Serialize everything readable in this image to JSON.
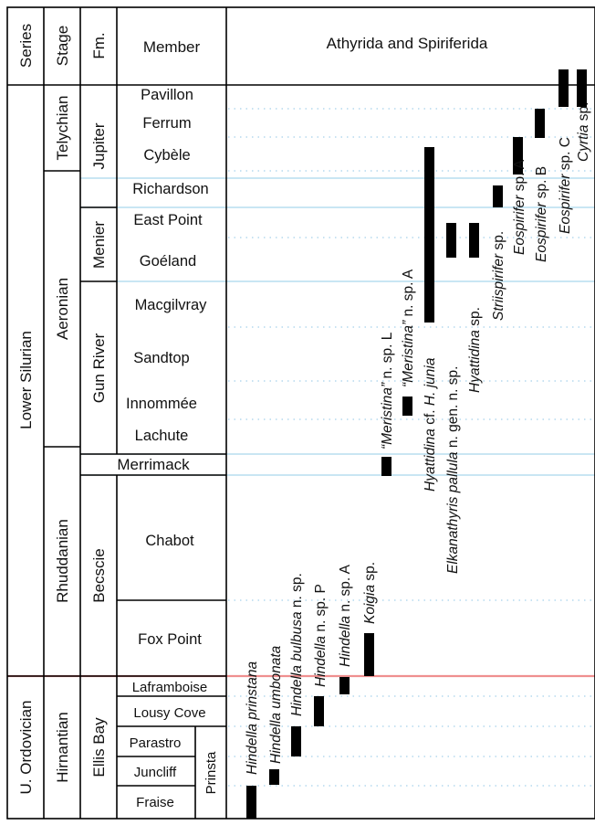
{
  "header": {
    "series": "Series",
    "stage": "Stage",
    "formation": "Fm.",
    "member": "Member",
    "group": "Athyrida and Spiriferida"
  },
  "series_units": [
    "Lower Silurian",
    "U. Ordovician"
  ],
  "stages": [
    "Telychian",
    "Aeronian",
    "Rhuddanian",
    "Hirnantian"
  ],
  "formations": [
    "Jupiter",
    "Menier",
    "Gun River",
    "Merrimack",
    "Becscie",
    "Ellis Bay"
  ],
  "members": [
    "Pavillon",
    "Ferrum",
    "Cybèle",
    "Richardson",
    "East Point",
    "Goéland",
    "Macgilvray",
    "Sandtop",
    "Innommée",
    "Lachute",
    "Chabot",
    "Fox Point",
    "Laframboise",
    "Lousy Cove",
    "Parastro",
    "Juncliff",
    "Fraise"
  ],
  "submember": "Prinsta",
  "colors": {
    "bar": "#000000",
    "member_boundary": "#a9d6ec",
    "system_boundary": "#ef8f8f",
    "dotted_level": "#8fc6e6",
    "frame": "#000000"
  },
  "chart_data": {
    "type": "range-chart",
    "title": "Athyrida and Spiriferida",
    "ordered_units_top_to_bottom": [
      "Pavillon",
      "Ferrum",
      "Cybèle",
      "Richardson",
      "East Point",
      "Goéland",
      "Macgilvray",
      "Sandtop",
      "Innommée",
      "Lachute",
      "Merrimack",
      "Chabot",
      "Fox Point",
      "Laframboise",
      "Lousy Cove",
      "Parastro",
      "Juncliff",
      "Fraise"
    ],
    "taxa": [
      {
        "parts": [
          {
            "t": "Hindella prinstana",
            "i": true
          }
        ],
        "range": [
          "Fraise",
          "Fraise"
        ]
      },
      {
        "parts": [
          {
            "t": "Hindella umbonata",
            "i": true
          }
        ],
        "range": [
          "Juncliff",
          "Juncliff"
        ]
      },
      {
        "parts": [
          {
            "t": "Hindella bulbusa",
            "i": true
          },
          {
            "t": " n. sp.",
            "i": false
          }
        ],
        "range": [
          "Parastro",
          "Parastro"
        ]
      },
      {
        "parts": [
          {
            "t": "Hindella",
            "i": true
          },
          {
            "t": " n. sp. P",
            "i": false
          }
        ],
        "range": [
          "Lousy Cove",
          "Lousy Cove"
        ]
      },
      {
        "parts": [
          {
            "t": "Hindella",
            "i": true
          },
          {
            "t": " n. sp. A",
            "i": false
          }
        ],
        "range": [
          "Laframboise",
          "Laframboise"
        ]
      },
      {
        "parts": [
          {
            "t": "Koigia",
            "i": true
          },
          {
            "t": " sp.",
            "i": false
          }
        ],
        "range": [
          "Fox Point",
          "Fox Point"
        ]
      },
      {
        "parts": [
          {
            "t": "“Meristina”",
            "i": true
          },
          {
            "t": " n. sp. L",
            "i": false
          }
        ],
        "range": [
          "Merrimack",
          "Merrimack"
        ]
      },
      {
        "parts": [
          {
            "t": "“Meristina”",
            "i": true
          },
          {
            "t": " n. sp. A",
            "i": false
          }
        ],
        "range": [
          "Innommée",
          "Innommée"
        ]
      },
      {
        "parts": [
          {
            "t": "Hyattidina",
            "i": true
          },
          {
            "t": " cf. ",
            "i": false
          },
          {
            "t": "H. junia",
            "i": true
          }
        ],
        "range": [
          "Macgilvray",
          "Cybèle"
        ]
      },
      {
        "parts": [
          {
            "t": "Elkanathyris pallula",
            "i": true
          },
          {
            "t": " n. gen. n. sp.",
            "i": false
          }
        ],
        "range": [
          "Goéland",
          "Goéland"
        ]
      },
      {
        "parts": [
          {
            "t": "Hyattidina",
            "i": true
          },
          {
            "t": " sp.",
            "i": false
          }
        ],
        "range": [
          "Goéland",
          "Goéland"
        ]
      },
      {
        "parts": [
          {
            "t": "Striispirifer",
            "i": true
          },
          {
            "t": " sp.",
            "i": false
          }
        ],
        "range": [
          "Richardson",
          "Richardson"
        ]
      },
      {
        "parts": [
          {
            "t": "Eospirifer",
            "i": true
          },
          {
            "t": " sp. A",
            "i": false
          }
        ],
        "range": [
          "Cybèle",
          "Cybèle"
        ]
      },
      {
        "parts": [
          {
            "t": "Eospirifer",
            "i": true
          },
          {
            "t": " sp. B",
            "i": false
          }
        ],
        "range": [
          "Ferrum",
          "Ferrum"
        ]
      },
      {
        "parts": [
          {
            "t": "Eospirifer",
            "i": true
          },
          {
            "t": " sp. C",
            "i": false
          }
        ],
        "range": [
          "Pavillon",
          "Pavillon"
        ]
      },
      {
        "parts": [
          {
            "t": "Cyrtia",
            "i": true
          },
          {
            "t": " sp.",
            "i": false
          }
        ],
        "range": [
          "Pavillon",
          "Pavillon"
        ]
      }
    ]
  }
}
